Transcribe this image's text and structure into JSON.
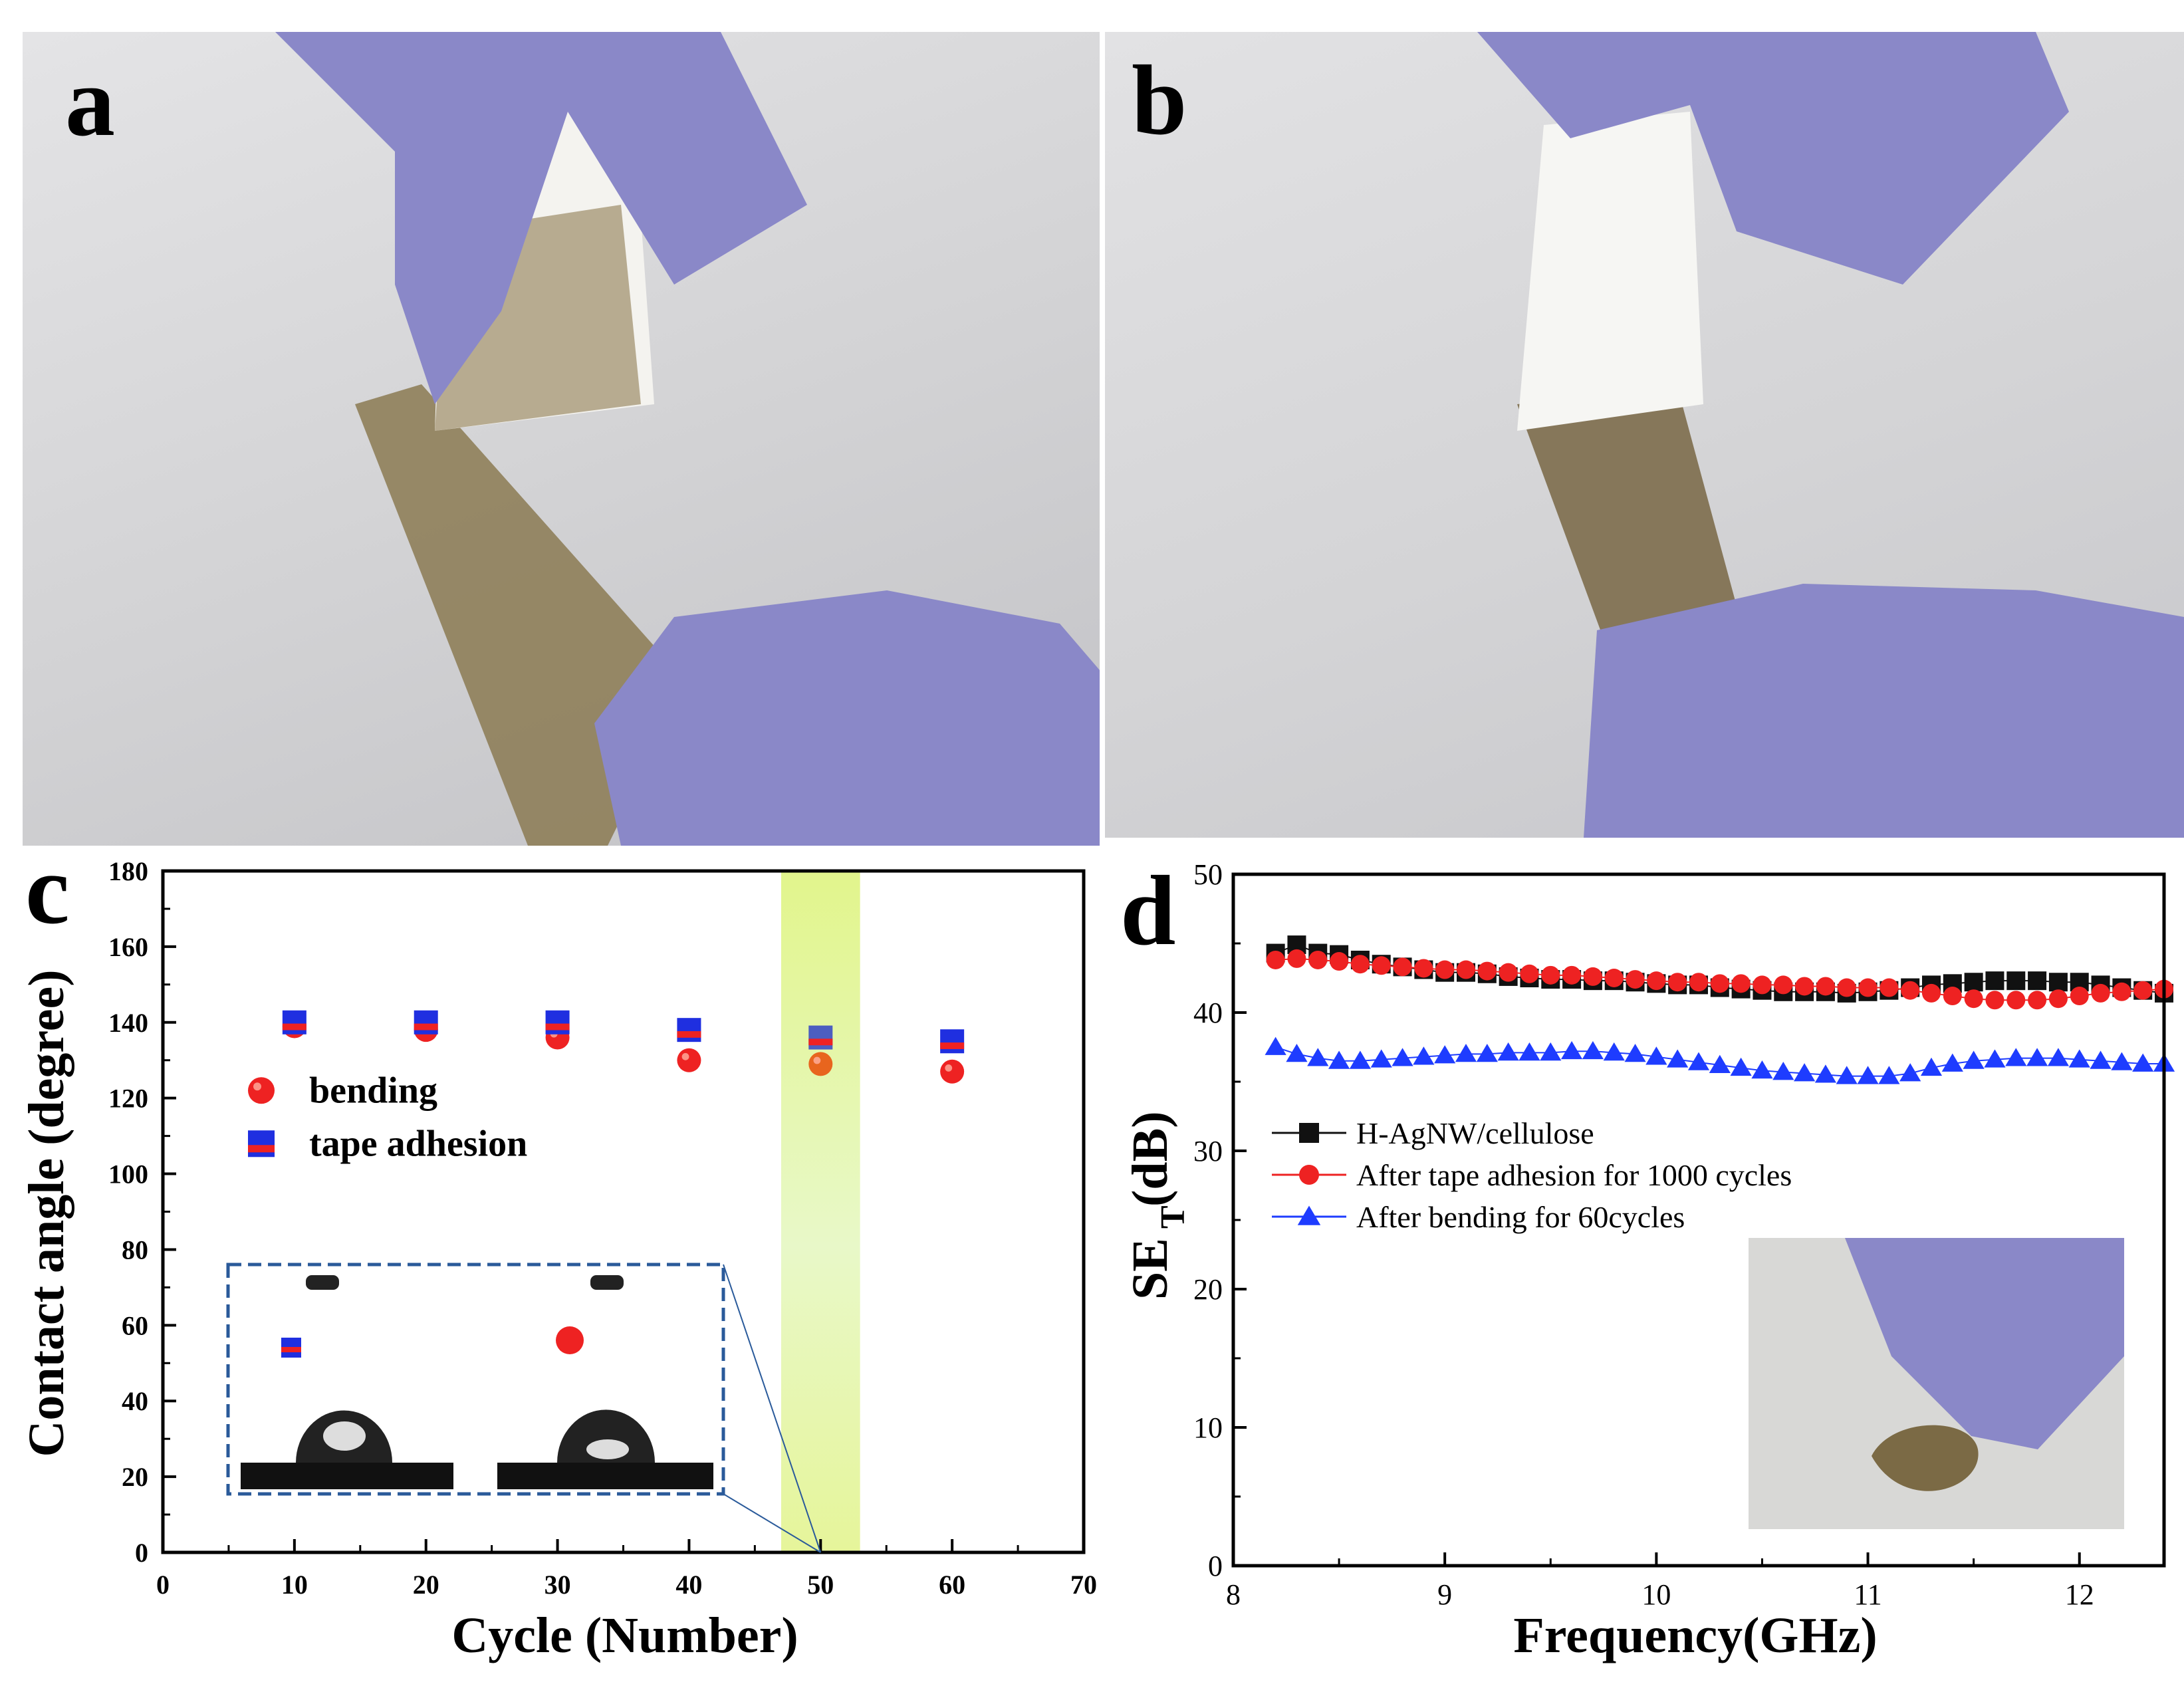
{
  "panels": {
    "a": {
      "label": "a"
    },
    "b": {
      "label": "b"
    },
    "c": {
      "label": "c"
    },
    "d": {
      "label": "d"
    }
  },
  "colors": {
    "glove": "#8a88c8",
    "film": "#8b7a52",
    "tape": "#f4f3ef",
    "highlight": "#e6f7a0",
    "bending": "#ee2222",
    "tape_adhesion": "#1f2fe0",
    "black_series": "#111111",
    "blue_series": "#1e3cff"
  },
  "chart_data": [
    {
      "id": "c",
      "type": "scatter",
      "xlabel": "Cycle (Number)",
      "ylabel": "Contact angle (degree)",
      "xlim": [
        0,
        70
      ],
      "ylim": [
        0,
        180
      ],
      "xticks": [
        0,
        10,
        20,
        30,
        40,
        50,
        60,
        70
      ],
      "yticks": [
        0,
        20,
        40,
        60,
        80,
        100,
        120,
        140,
        160,
        180
      ],
      "highlight_band": [
        47,
        53
      ],
      "series": [
        {
          "name": "bending",
          "marker": "circle",
          "color": "#ee2222",
          "x": [
            10,
            20,
            30,
            40,
            50,
            60
          ],
          "y": [
            139,
            138,
            136,
            130,
            129,
            127
          ]
        },
        {
          "name": "tape adhesion",
          "marker": "square",
          "color": "#1f2fe0",
          "x": [
            10,
            20,
            30,
            40,
            50,
            60
          ],
          "y": [
            140,
            140,
            140,
            138,
            136,
            135
          ]
        }
      ],
      "legend_position": "center-left",
      "inset": "water droplet contact-angle images (after tape adhesion and after bending, 50 cycles)"
    },
    {
      "id": "d",
      "type": "scatter",
      "xlabel": "Frequency(GHz)",
      "ylabel_main": "SE",
      "ylabel_sub": "T",
      "ylabel_unit": "(dB)",
      "xlim": [
        8,
        12.4
      ],
      "ylim": [
        0,
        50
      ],
      "xticks": [
        8,
        9,
        10,
        11,
        12
      ],
      "yticks": [
        0,
        10,
        20,
        30,
        40,
        50
      ],
      "x": [
        8.2,
        8.3,
        8.4,
        8.5,
        8.6,
        8.7,
        8.8,
        8.9,
        9.0,
        9.1,
        9.2,
        9.3,
        9.4,
        9.5,
        9.6,
        9.7,
        9.8,
        9.9,
        10.0,
        10.1,
        10.2,
        10.3,
        10.4,
        10.5,
        10.6,
        10.7,
        10.8,
        10.9,
        11.0,
        11.1,
        11.2,
        11.3,
        11.4,
        11.5,
        11.6,
        11.7,
        11.8,
        11.9,
        12.0,
        12.1,
        12.2,
        12.3,
        12.4
      ],
      "series": [
        {
          "name": "H-AgNW/cellulose",
          "marker": "square",
          "color": "#111111",
          "y": [
            44.3,
            44.9,
            44.3,
            44.2,
            43.8,
            43.5,
            43.3,
            43.1,
            42.9,
            42.9,
            42.8,
            42.6,
            42.5,
            42.4,
            42.4,
            42.3,
            42.3,
            42.2,
            42.1,
            42.0,
            42.0,
            41.8,
            41.7,
            41.6,
            41.5,
            41.5,
            41.5,
            41.4,
            41.5,
            41.6,
            41.8,
            42.0,
            42.1,
            42.2,
            42.3,
            42.3,
            42.3,
            42.2,
            42.2,
            42.0,
            41.8,
            41.6,
            41.4
          ]
        },
        {
          "name": "After tape adhesion for 1000 cycles",
          "marker": "circle",
          "color": "#ee2222",
          "y": [
            43.8,
            43.9,
            43.8,
            43.7,
            43.5,
            43.4,
            43.3,
            43.2,
            43.1,
            43.1,
            43.0,
            42.9,
            42.8,
            42.7,
            42.7,
            42.6,
            42.5,
            42.4,
            42.3,
            42.2,
            42.2,
            42.1,
            42.1,
            42.0,
            42.0,
            41.9,
            41.9,
            41.8,
            41.8,
            41.8,
            41.6,
            41.4,
            41.2,
            41.0,
            40.9,
            40.9,
            40.9,
            41.0,
            41.2,
            41.4,
            41.5,
            41.6,
            41.7
          ]
        },
        {
          "name": "After bending for 60cycles",
          "marker": "triangle",
          "color": "#1e3cff",
          "y": [
            37.5,
            37.0,
            36.7,
            36.5,
            36.5,
            36.6,
            36.7,
            36.8,
            36.9,
            37.0,
            37.0,
            37.1,
            37.1,
            37.1,
            37.2,
            37.2,
            37.1,
            37.0,
            36.8,
            36.6,
            36.4,
            36.2,
            36.0,
            35.8,
            35.7,
            35.6,
            35.5,
            35.4,
            35.4,
            35.4,
            35.6,
            36.0,
            36.3,
            36.5,
            36.6,
            36.7,
            36.7,
            36.7,
            36.6,
            36.5,
            36.4,
            36.3,
            36.3
          ]
        }
      ],
      "legend_position": "upper-left",
      "inset": "photo of bent film held by gloved hand"
    }
  ]
}
